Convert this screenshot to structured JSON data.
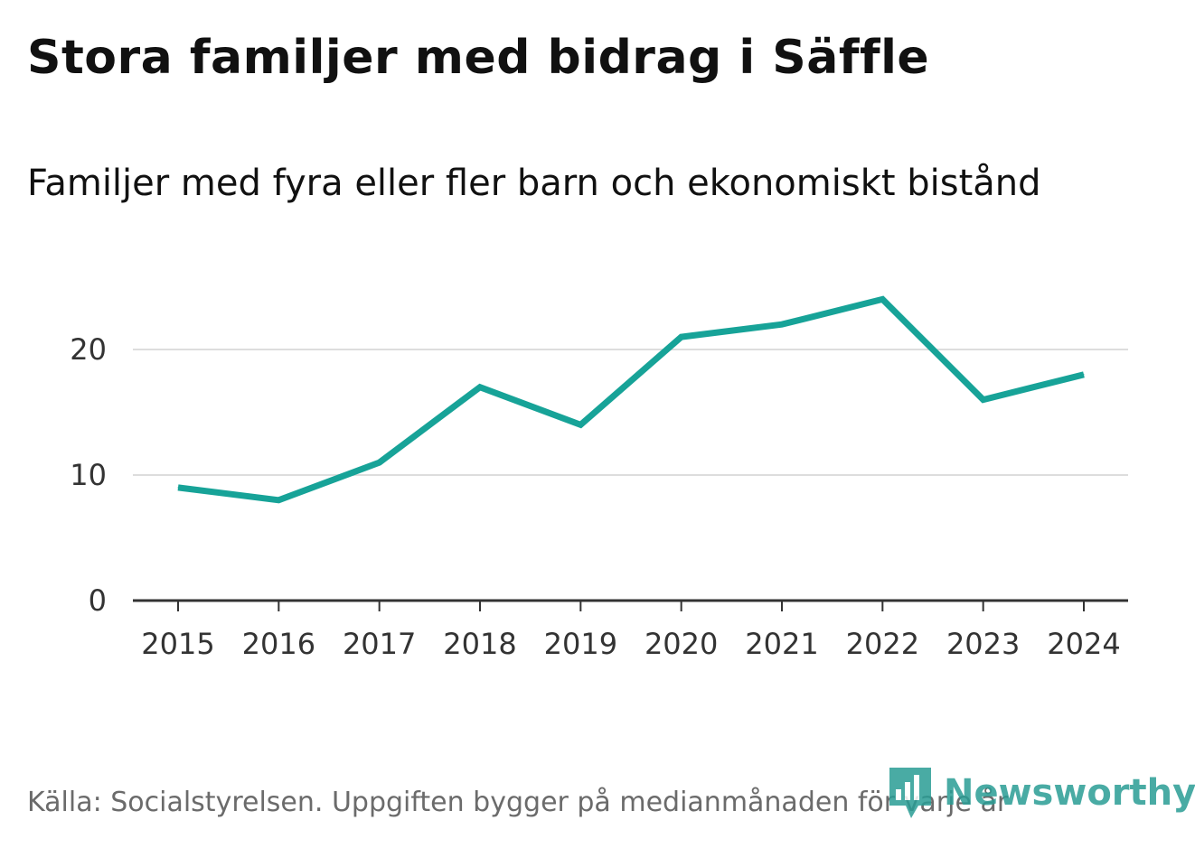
{
  "title": "Stora familjer med bidrag i Säffle",
  "subtitle": "Familjer med fyra eller fler barn och ekonomiskt bistånd",
  "source": "Källa: Socialstyrelsen. Uppgiften bygger på medianmånaden för varje år",
  "brand": {
    "name": "Newsworthy",
    "color": "#2a9d95"
  },
  "colors": {
    "line": "#17a398",
    "grid": "#dddddd",
    "axis": "#333333"
  },
  "chart_data": {
    "type": "line",
    "title": "Stora familjer med bidrag i Säffle",
    "subtitle": "Familjer med fyra eller fler barn och ekonomiskt bistånd",
    "xlabel": "",
    "ylabel": "",
    "categories": [
      "2015",
      "2016",
      "2017",
      "2018",
      "2019",
      "2020",
      "2021",
      "2022",
      "2023",
      "2024"
    ],
    "series": [
      {
        "name": "Familjer med fyra eller fler barn och ekonomiskt bistånd",
        "values": [
          9,
          8,
          11,
          17,
          14,
          21,
          22,
          24,
          16,
          18
        ]
      }
    ],
    "yticks": [
      0,
      10,
      20
    ],
    "ylim": [
      0,
      25
    ],
    "grid": true
  }
}
